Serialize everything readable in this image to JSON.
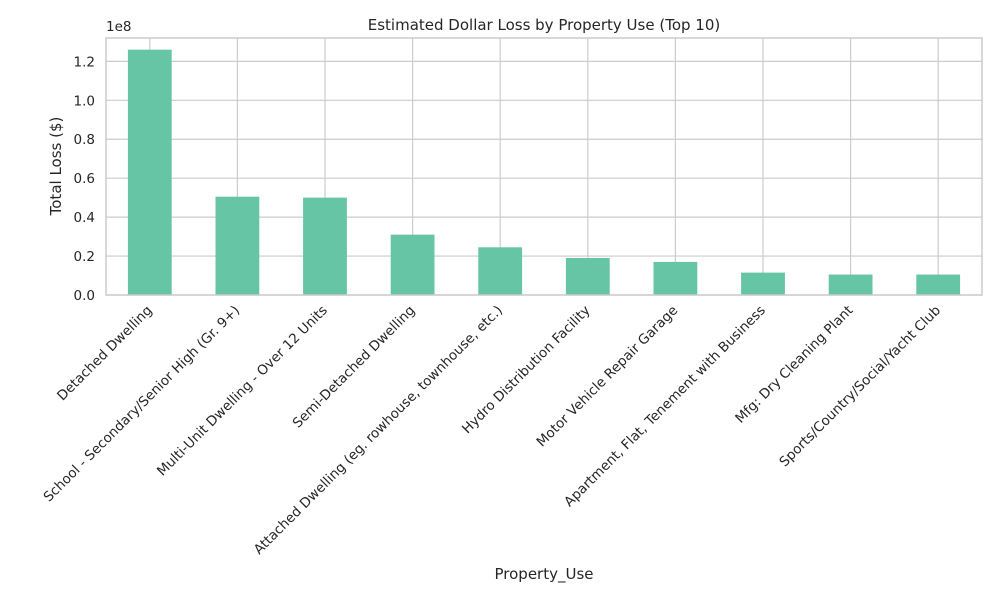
{
  "chart_data": {
    "type": "bar",
    "title": "Estimated Dollar Loss by Property Use (Top 10)",
    "xlabel": "Property_Use",
    "ylabel": "Total Loss ($)",
    "y_offset_label": "1e8",
    "categories": [
      "Detached Dwelling",
      "School - Secondary/Senior High (Gr. 9+)",
      "Multi-Unit Dwelling - Over 12 Units",
      "Semi-Detached Dwelling",
      "Attached Dwelling (eg. rowhouse, townhouse, etc.)",
      "Hydro Distribution Facility",
      "Motor Vehicle Repair Garage",
      "Apartment, Flat, Tenement with Business",
      "Mfg: Dry Cleaning Plant",
      "Sports/Country/Social/Yacht Club"
    ],
    "values": [
      126000000,
      50500000,
      50000000,
      31000000,
      24500000,
      19000000,
      17000000,
      11500000,
      10500000,
      10500000
    ],
    "ylim": [
      0,
      132000000
    ],
    "yticks": [
      0,
      20000000,
      40000000,
      60000000,
      80000000,
      100000000,
      120000000
    ],
    "ytick_labels": [
      "0.0",
      "0.2",
      "0.4",
      "0.6",
      "0.8",
      "1.0",
      "1.2"
    ],
    "grid": true,
    "legend": "none",
    "colors": {
      "bar": "#66c5a5",
      "grid": "#cccccc",
      "spine": "#cccccc",
      "text": "#262626",
      "background": "#ffffff"
    }
  }
}
